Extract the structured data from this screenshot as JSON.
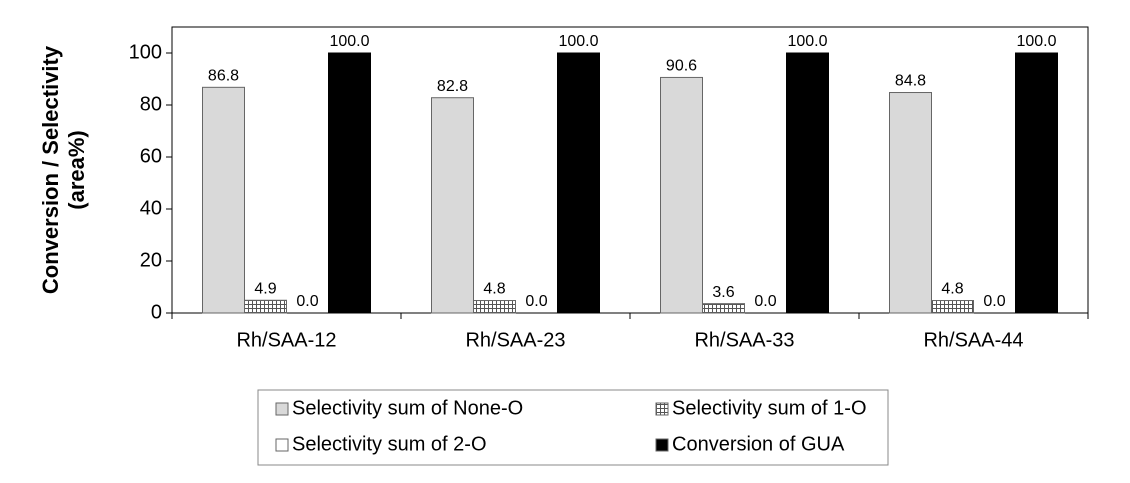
{
  "chart_data": {
    "type": "bar",
    "ylabel": [
      "Conversion / Selectivity",
      "(area%)"
    ],
    "categories": [
      "Rh/SAA-12",
      "Rh/SAA-23",
      "Rh/SAA-33",
      "Rh/SAA-44"
    ],
    "series": [
      {
        "name": "Selectivity sum of None-O",
        "color": "#d9d9d9",
        "values": [
          86.8,
          82.8,
          90.6,
          84.8
        ],
        "value_labels": [
          "86.8",
          "82.8",
          "90.6",
          "84.8"
        ]
      },
      {
        "name": "Selectivity sum of 1-O",
        "color": "#ffffff",
        "hatch": true,
        "values": [
          4.9,
          4.8,
          3.6,
          4.8
        ],
        "value_labels": [
          "4.9",
          "4.8",
          "3.6",
          "4.8"
        ]
      },
      {
        "name": "Selectivity sum of 2-O",
        "color": "#ffffff",
        "values": [
          0,
          0,
          0,
          0
        ],
        "value_labels": [
          "0.0",
          "0.0",
          "0.0",
          "0.0"
        ]
      },
      {
        "name": "Conversion of GUA",
        "color": "#000000",
        "values": [
          100,
          100,
          100,
          100
        ],
        "value_labels": [
          "100.0",
          "100.0",
          "100.0",
          "100.0"
        ]
      }
    ],
    "ylim": [
      0,
      110
    ],
    "yticks": [
      0,
      20,
      40,
      60,
      80,
      100
    ]
  }
}
